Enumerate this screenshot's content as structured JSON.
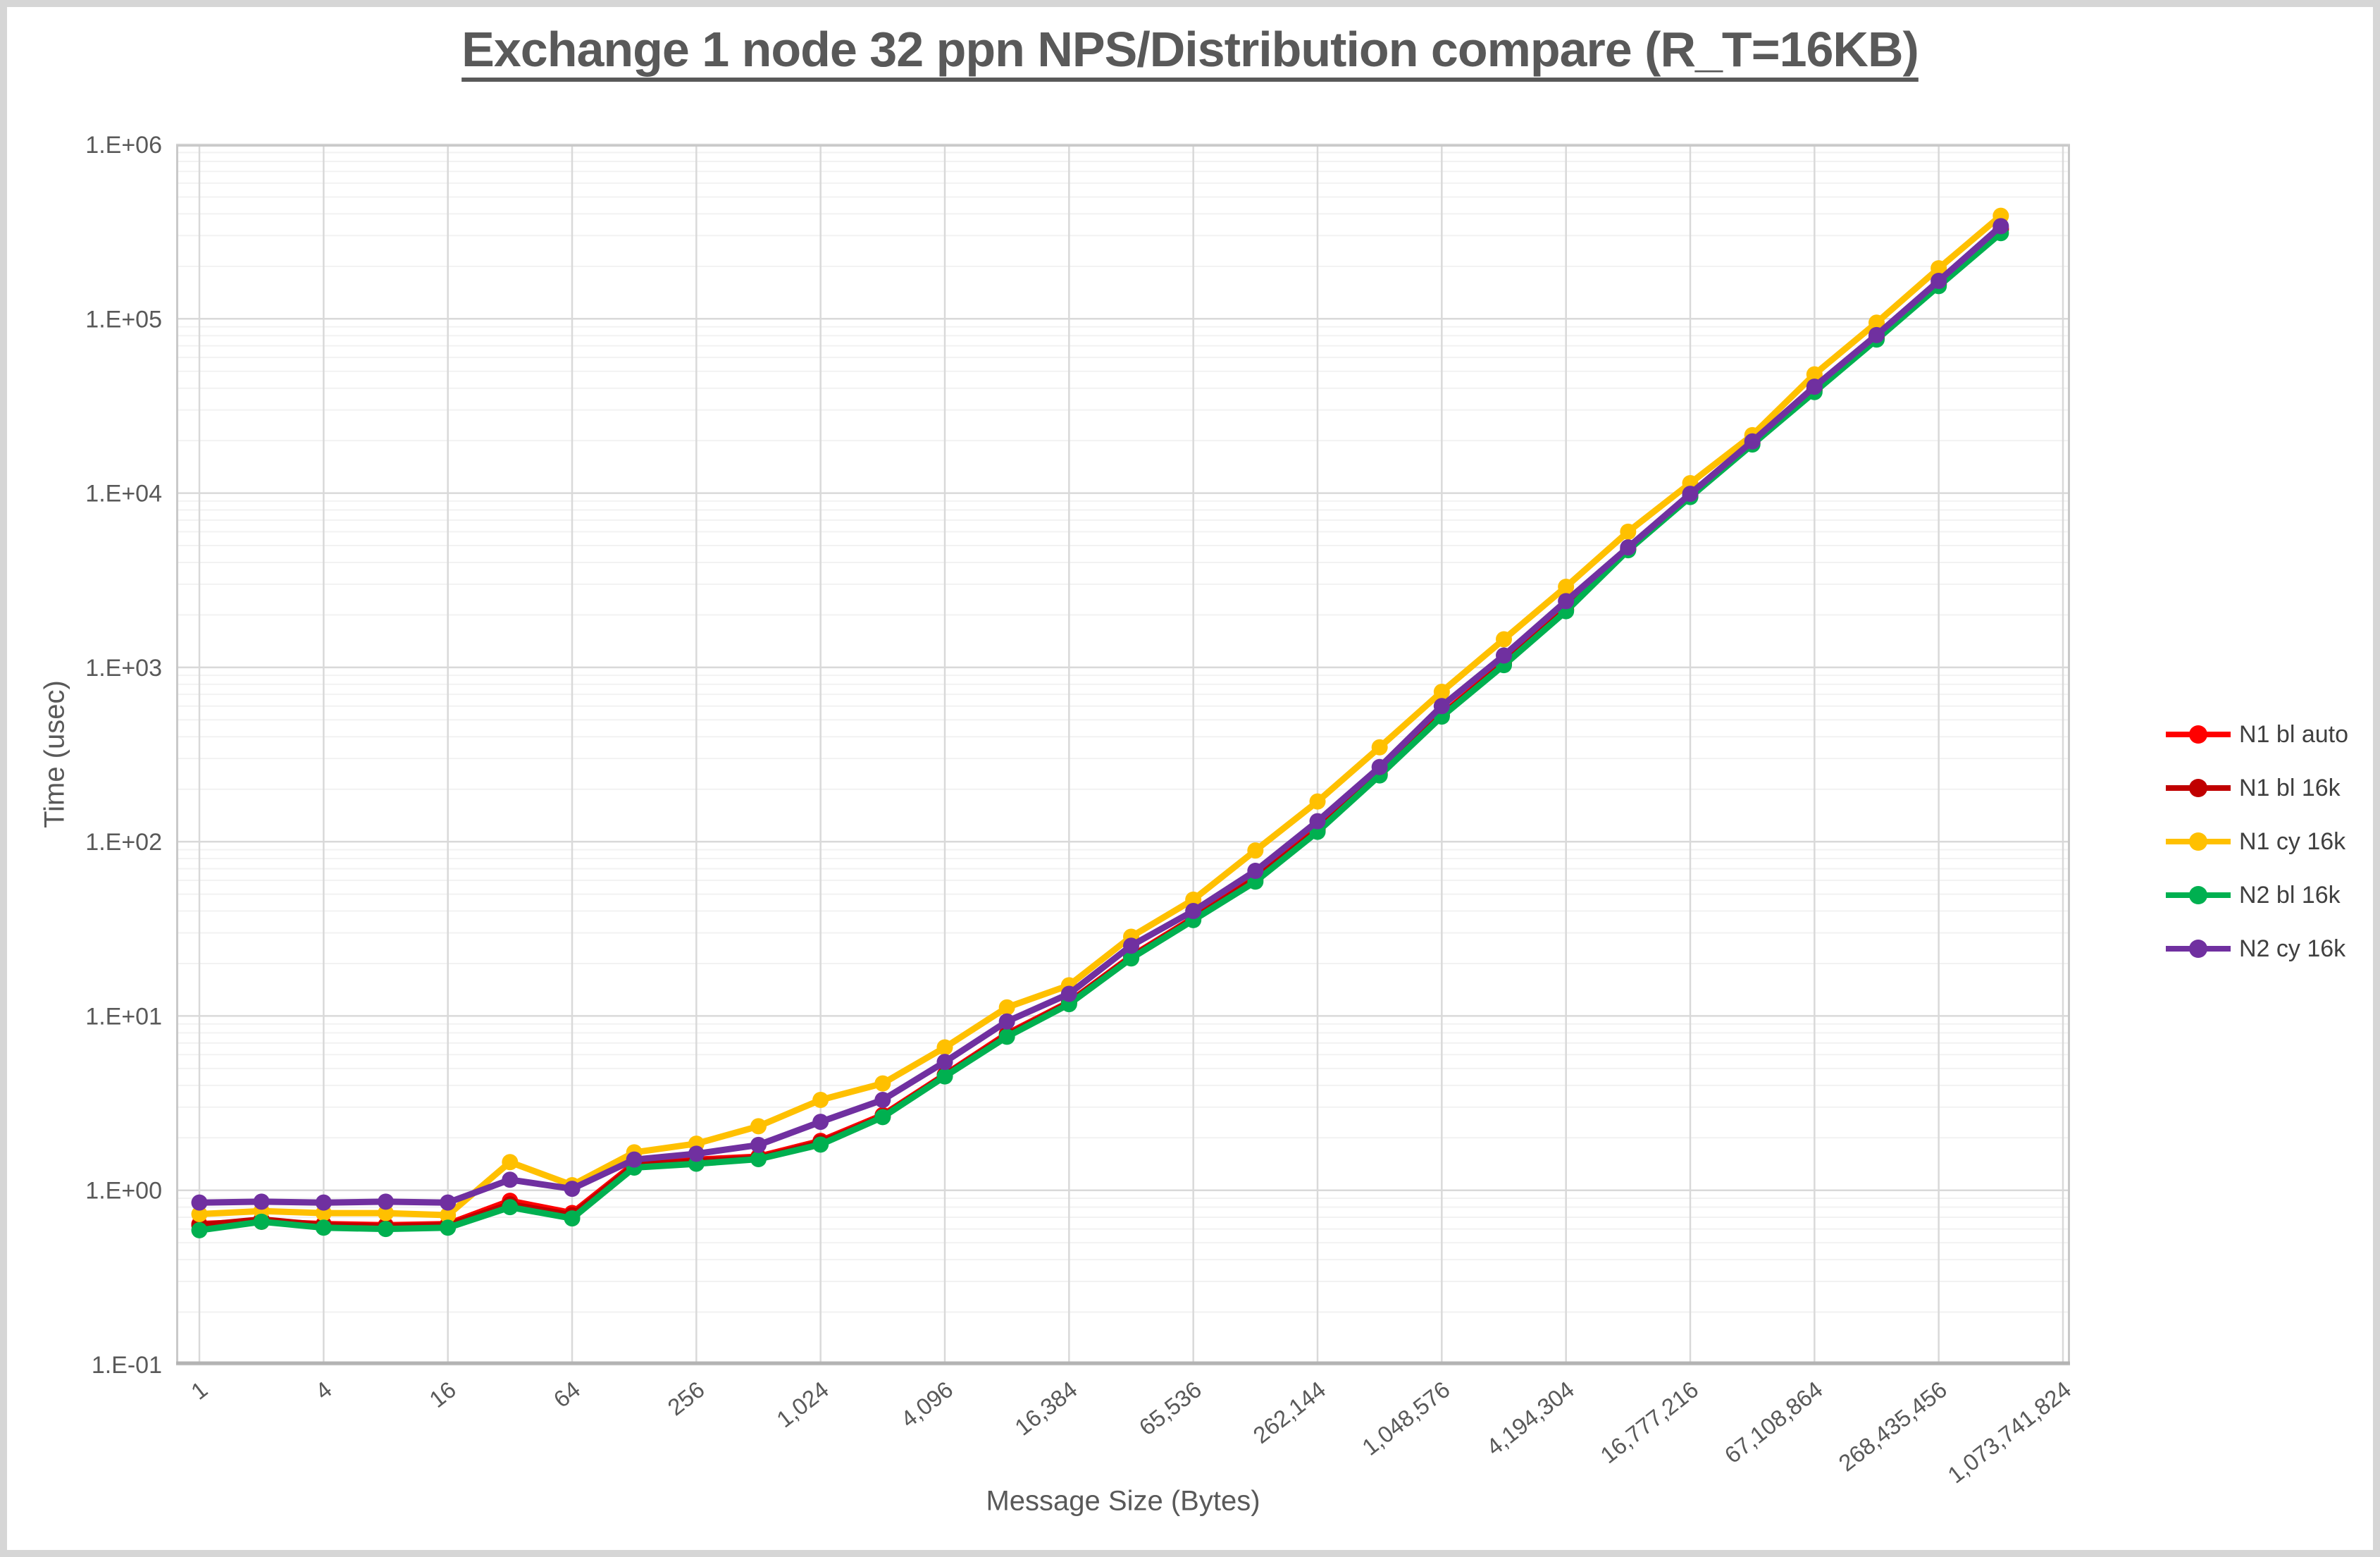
{
  "title": {
    "text": "Exchange 1 node 32 ppn NPS/Distribution compare (R_T=16KB)"
  },
  "colors": {
    "title_text": "#595959",
    "axis_text": "#595959",
    "legend_text": "#404040",
    "gridline_major": "#d9d9d9",
    "gridline_minor": "#f2f2f2",
    "plot_border": "#c9c9c9",
    "axis_line": "#b3b3b3",
    "window_frame": "#d6d6d6"
  },
  "chart_data": {
    "type": "line",
    "title": "Exchange 1 node 32 ppn NPS/Distribution compare (R_T=16KB)",
    "xlabel": "Message Size (Bytes)",
    "ylabel": "Time (usec)",
    "x_scale": "log2-categories",
    "y_scale": "log10",
    "ylim": [
      0.1,
      1000000
    ],
    "grid": "on",
    "legend_position": "right",
    "y_tick_labels": [
      "1.E+06",
      "1.E+05",
      "1.E+04",
      "1.E+03",
      "1.E+02",
      "1.E+01",
      "1.E+00",
      "1.E-01"
    ],
    "x_tick_labels": [
      "1",
      "4",
      "16",
      "64",
      "256",
      "1,024",
      "4,096",
      "16,384",
      "65,536",
      "262,144",
      "1,048,576",
      "4,194,304",
      "16,777,216",
      "67,108,864",
      "268,435,456",
      "1,073,741,824"
    ],
    "x_axis_span_categories": 31,
    "x": [
      1,
      2,
      4,
      8,
      16,
      32,
      64,
      128,
      256,
      512,
      1024,
      2048,
      4096,
      8192,
      16384,
      32768,
      65536,
      131072,
      262144,
      524288,
      1048576,
      2097152,
      4194304,
      8388608,
      16777216,
      33554432,
      67108864,
      134217728,
      268435456,
      536870912
    ],
    "series": [
      {
        "name": "N1 bl auto",
        "color": "#FF0000",
        "values": [
          0.64,
          0.66,
          0.64,
          0.63,
          0.64,
          0.87,
          0.74,
          1.42,
          1.5,
          1.56,
          1.92,
          2.7,
          4.6,
          7.9,
          12,
          22,
          36.5,
          62,
          118,
          245,
          535,
          1060,
          2150,
          4800,
          9700,
          19500,
          39500,
          78000,
          158000,
          330000
        ]
      },
      {
        "name": "N1 bl 16k",
        "color": "#C00000",
        "values": [
          0.63,
          0.68,
          0.63,
          0.62,
          0.63,
          0.83,
          0.72,
          1.39,
          1.47,
          1.53,
          1.88,
          2.65,
          4.55,
          7.75,
          11.9,
          21.7,
          36,
          61,
          116,
          242,
          528,
          1045,
          2130,
          4750,
          9600,
          19300,
          39000,
          77000,
          156000,
          324000
        ]
      },
      {
        "name": "N1 cy 16k",
        "color": "#FFC000",
        "values": [
          0.73,
          0.76,
          0.74,
          0.74,
          0.72,
          1.45,
          1.07,
          1.65,
          1.85,
          2.33,
          3.3,
          4.1,
          6.6,
          11.2,
          15,
          28.5,
          46.5,
          89,
          170,
          348,
          724,
          1450,
          2900,
          6000,
          11400,
          21500,
          48000,
          95000,
          195000,
          390000
        ]
      },
      {
        "name": "N2 bl 16k",
        "color": "#00B050",
        "values": [
          0.59,
          0.66,
          0.61,
          0.6,
          0.61,
          0.8,
          0.69,
          1.35,
          1.42,
          1.51,
          1.83,
          2.63,
          4.5,
          7.6,
          11.7,
          21.4,
          35.5,
          59,
          114,
          240,
          522,
          1030,
          2100,
          4700,
          9500,
          19000,
          38000,
          76000,
          154000,
          310000
        ]
      },
      {
        "name": "N2 cy 16k",
        "color": "#7030A0",
        "values": [
          0.85,
          0.86,
          0.85,
          0.86,
          0.85,
          1.15,
          1.02,
          1.5,
          1.62,
          1.82,
          2.47,
          3.3,
          5.45,
          9.3,
          13.4,
          25.3,
          40,
          68,
          131,
          268,
          600,
          1170,
          2400,
          4880,
          9900,
          19800,
          40800,
          80700,
          165000,
          340000
        ]
      }
    ]
  }
}
